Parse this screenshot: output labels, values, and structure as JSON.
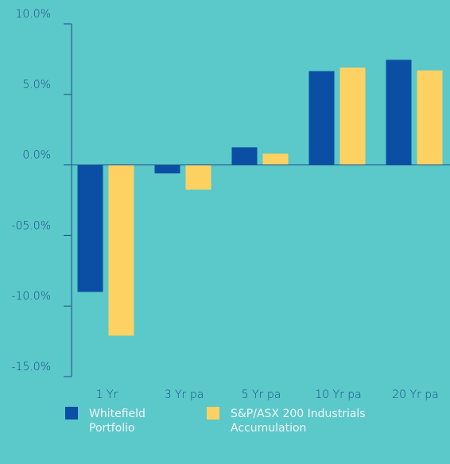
{
  "chart_data": {
    "type": "bar",
    "categories": [
      "1 Yr",
      "3 Yr pa",
      "5 Yr pa",
      "10 Yr pa",
      "20 Yr pa"
    ],
    "series": [
      {
        "name": "Whitefield Portfolio",
        "color": "#0a4fa3",
        "values": [
          -9.0,
          -0.6,
          1.25,
          6.65,
          7.45
        ]
      },
      {
        "name": "S&P/ASX 200 Industrials Accumulation",
        "color": "#fdd263",
        "values": [
          -12.1,
          -1.75,
          0.8,
          6.9,
          6.7
        ]
      }
    ],
    "ylim": [
      -15,
      10
    ],
    "yticks": [
      {
        "value": -15,
        "label": "-15.0%"
      },
      {
        "value": -10,
        "label": "-10.0%"
      },
      {
        "value": -5,
        "label": "-05.0%"
      },
      {
        "value": 0,
        "label": "0.0%"
      },
      {
        "value": 5,
        "label": "5.0%"
      },
      {
        "value": 10,
        "label": "10.0%"
      }
    ],
    "legend": "bottom"
  }
}
